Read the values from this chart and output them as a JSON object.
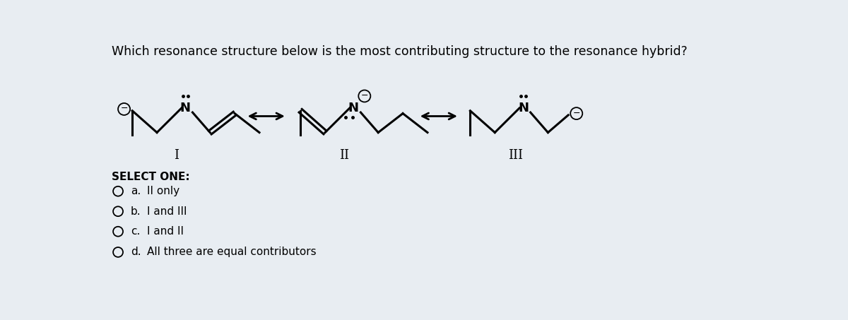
{
  "title": "Which resonance structure below is the most contributing structure to the resonance hybrid?",
  "background_color": "#e8edf2",
  "title_fontsize": 12.5,
  "options": [
    {
      "label": "a.",
      "text": "II only"
    },
    {
      "label": "b.",
      "text": "I and III"
    },
    {
      "label": "c.",
      "text": "I and II"
    },
    {
      "label": "d.",
      "text": "All three are equal contributors"
    }
  ],
  "roman_labels": [
    "I",
    "II",
    "III"
  ],
  "select_one_text": "SELECT ONE:"
}
